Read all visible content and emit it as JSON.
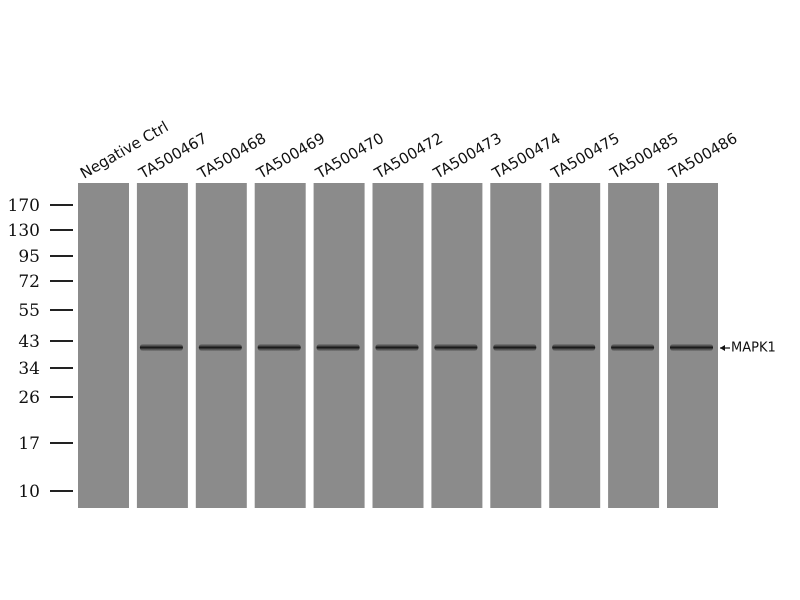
{
  "lanes": [
    {
      "label": "Negative Ctrl",
      "color": "#222222",
      "band": false
    },
    {
      "label": "TA500467",
      "color": "#111111",
      "band": true
    },
    {
      "label": "TA500468",
      "color": "#111111",
      "band": true
    },
    {
      "label": "TA500469",
      "color": "#111111",
      "band": true
    },
    {
      "label": "TA500470",
      "color": "#111111",
      "band": true
    },
    {
      "label": "TA500472",
      "color": "#111111",
      "band": true
    },
    {
      "label": "TA500473",
      "color": "#111111",
      "band": true
    },
    {
      "label": "TA500474",
      "color": "#111111",
      "band": true
    },
    {
      "label": "TA500475",
      "color": "#111111",
      "band": true
    },
    {
      "label": "TA500485",
      "color": "#4a3fd0",
      "band": true
    },
    {
      "label": "TA500486",
      "color": "#111111",
      "band": true
    }
  ],
  "markers": [
    "170",
    "130",
    "95",
    "72",
    "55",
    "43",
    "34",
    "26",
    "17",
    "10"
  ],
  "band_label": "MAPK1"
}
